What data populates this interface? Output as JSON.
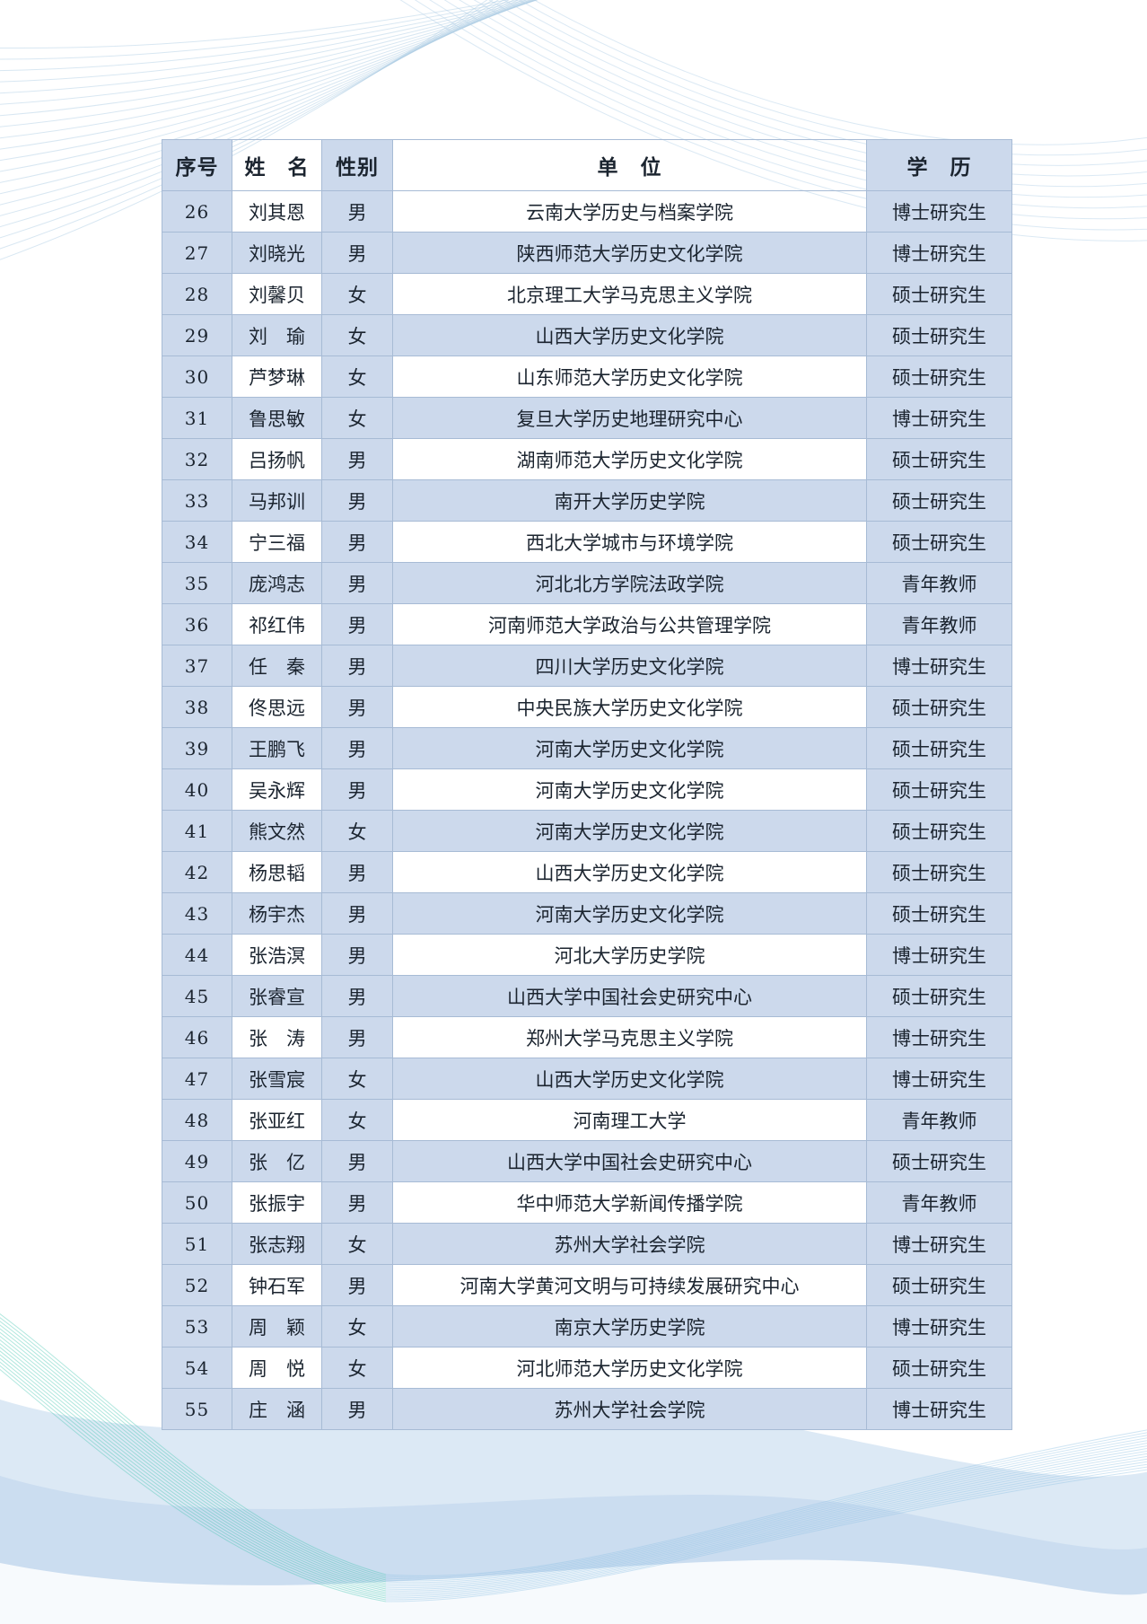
{
  "table": {
    "headers": [
      "序号",
      "姓　名",
      "性别",
      "单　位",
      "学　历"
    ],
    "rows": [
      [
        "26",
        "刘其恩",
        "男",
        "云南大学历史与档案学院",
        "博士研究生"
      ],
      [
        "27",
        "刘晓光",
        "男",
        "陕西师范大学历史文化学院",
        "博士研究生"
      ],
      [
        "28",
        "刘馨贝",
        "女",
        "北京理工大学马克思主义学院",
        "硕士研究生"
      ],
      [
        "29",
        "刘　瑜",
        "女",
        "山西大学历史文化学院",
        "硕士研究生"
      ],
      [
        "30",
        "芦梦琳",
        "女",
        "山东师范大学历史文化学院",
        "硕士研究生"
      ],
      [
        "31",
        "鲁思敏",
        "女",
        "复旦大学历史地理研究中心",
        "博士研究生"
      ],
      [
        "32",
        "吕扬帆",
        "男",
        "湖南师范大学历史文化学院",
        "硕士研究生"
      ],
      [
        "33",
        "马邦训",
        "男",
        "南开大学历史学院",
        "硕士研究生"
      ],
      [
        "34",
        "宁三福",
        "男",
        "西北大学城市与环境学院",
        "硕士研究生"
      ],
      [
        "35",
        "庞鸿志",
        "男",
        "河北北方学院法政学院",
        "青年教师"
      ],
      [
        "36",
        "祁红伟",
        "男",
        "河南师范大学政治与公共管理学院",
        "青年教师"
      ],
      [
        "37",
        "任　秦",
        "男",
        "四川大学历史文化学院",
        "博士研究生"
      ],
      [
        "38",
        "佟思远",
        "男",
        "中央民族大学历史文化学院",
        "硕士研究生"
      ],
      [
        "39",
        "王鹏飞",
        "男",
        "河南大学历史文化学院",
        "硕士研究生"
      ],
      [
        "40",
        "吴永辉",
        "男",
        "河南大学历史文化学院",
        "硕士研究生"
      ],
      [
        "41",
        "熊文然",
        "女",
        "河南大学历史文化学院",
        "硕士研究生"
      ],
      [
        "42",
        "杨思韬",
        "男",
        "山西大学历史文化学院",
        "硕士研究生"
      ],
      [
        "43",
        "杨宇杰",
        "男",
        "河南大学历史文化学院",
        "硕士研究生"
      ],
      [
        "44",
        "张浩溟",
        "男",
        "河北大学历史学院",
        "博士研究生"
      ],
      [
        "45",
        "张睿宣",
        "男",
        "山西大学中国社会史研究中心",
        "硕士研究生"
      ],
      [
        "46",
        "张　涛",
        "男",
        "郑州大学马克思主义学院",
        "博士研究生"
      ],
      [
        "47",
        "张雪宸",
        "女",
        "山西大学历史文化学院",
        "博士研究生"
      ],
      [
        "48",
        "张亚红",
        "女",
        "河南理工大学",
        "青年教师"
      ],
      [
        "49",
        "张　亿",
        "男",
        "山西大学中国社会史研究中心",
        "硕士研究生"
      ],
      [
        "50",
        "张振宇",
        "男",
        "华中师范大学新闻传播学院",
        "青年教师"
      ],
      [
        "51",
        "张志翔",
        "女",
        "苏州大学社会学院",
        "博士研究生"
      ],
      [
        "52",
        "钟石军",
        "男",
        "河南大学黄河文明与可持续发展研究中心",
        "硕士研究生"
      ],
      [
        "53",
        "周　颖",
        "女",
        "南京大学历史学院",
        "博士研究生"
      ],
      [
        "54",
        "周　悦",
        "女",
        "河北师范大学历史文化学院",
        "硕士研究生"
      ],
      [
        "55",
        "庄　涵",
        "男",
        "苏州大学社会学院",
        "博士研究生"
      ]
    ]
  },
  "colors": {
    "cell_tint": "#ccd9ec",
    "cell_white": "#ffffff",
    "border": "#a7bbd5",
    "text": "#1b242f",
    "teal_line_accent": "#3bc4ad",
    "blue_line_accent": "#8cc1e4",
    "wave_light": "#dce9f5",
    "wave_mid": "#c9dcef"
  }
}
